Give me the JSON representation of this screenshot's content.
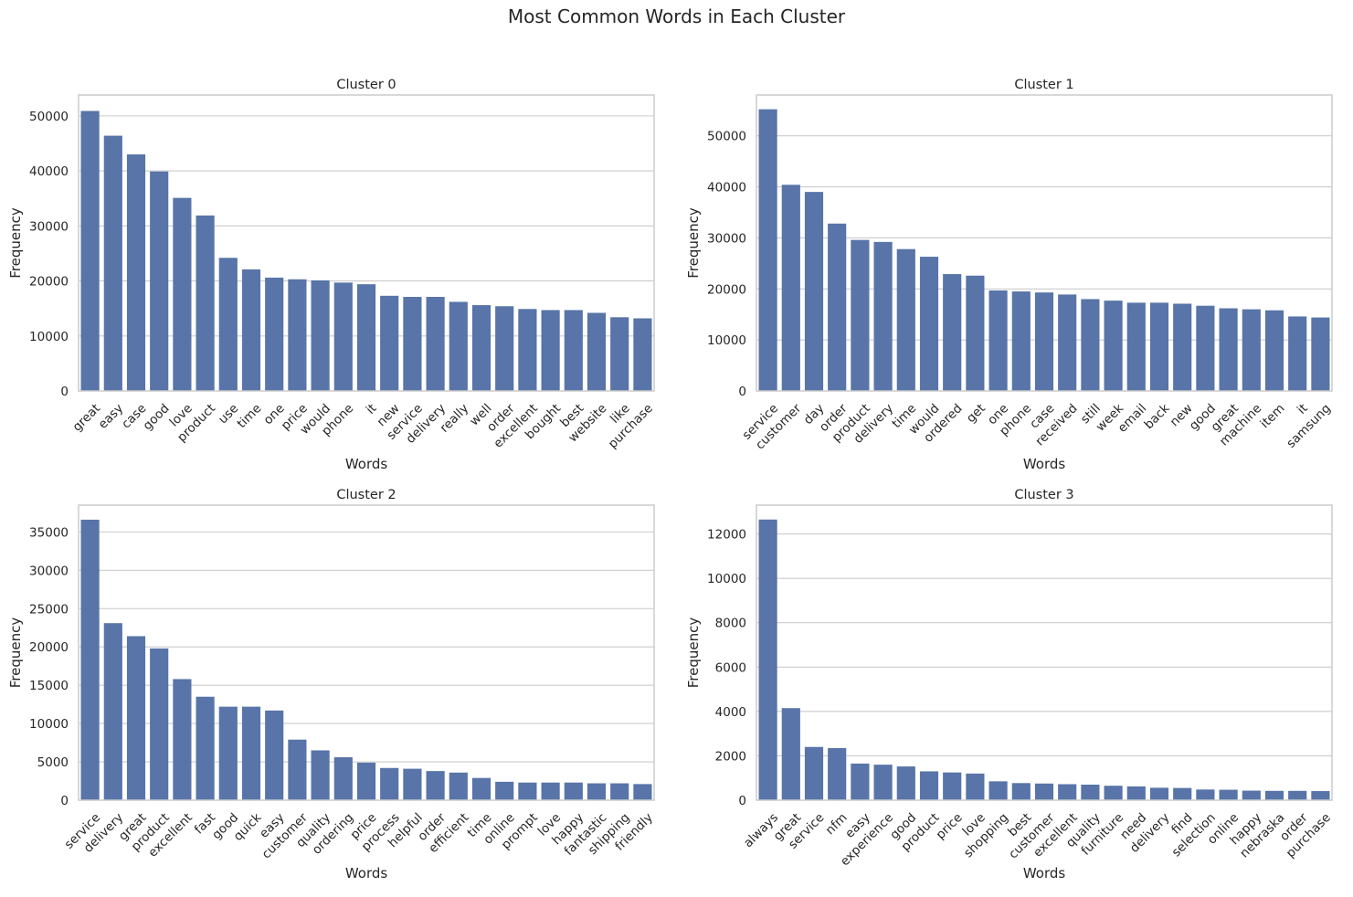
{
  "figure_title": "Most Common Words in Each Cluster",
  "colors": {
    "bar": "#5874a8",
    "grid": "#cccccc",
    "spine": "#cccccc",
    "background": "#ffffff"
  },
  "chart_data": [
    {
      "type": "bar",
      "title": "Cluster 0",
      "xlabel": "Words",
      "ylabel": "Frequency",
      "ylim": [
        0,
        53800
      ],
      "yticks": [
        0,
        10000,
        20000,
        30000,
        40000,
        50000
      ],
      "grid": "horizontal",
      "categories": [
        "great",
        "easy",
        "case",
        "good",
        "love",
        "product",
        "use",
        "time",
        "one",
        "price",
        "would",
        "phone",
        "it",
        "new",
        "service",
        "delivery",
        "really",
        "well",
        "order",
        "excellent",
        "bought",
        "best",
        "website",
        "like",
        "purchase"
      ],
      "values": [
        50900,
        46400,
        43000,
        39900,
        35100,
        31900,
        24200,
        22100,
        20600,
        20300,
        20100,
        19700,
        19400,
        17300,
        17100,
        17100,
        16200,
        15600,
        15400,
        14900,
        14700,
        14700,
        14200,
        13400,
        13200
      ]
    },
    {
      "type": "bar",
      "title": "Cluster 1",
      "xlabel": "Words",
      "ylabel": "Frequency",
      "ylim": [
        0,
        58000
      ],
      "yticks": [
        0,
        10000,
        20000,
        30000,
        40000,
        50000
      ],
      "grid": "horizontal",
      "categories": [
        "service",
        "customer",
        "day",
        "order",
        "product",
        "delivery",
        "time",
        "would",
        "ordered",
        "get",
        "one",
        "phone",
        "case",
        "received",
        "still",
        "week",
        "email",
        "back",
        "new",
        "good",
        "great",
        "machine",
        "item",
        "it",
        "samsung"
      ],
      "values": [
        55200,
        40400,
        39000,
        32800,
        29600,
        29200,
        27800,
        26300,
        22900,
        22600,
        19700,
        19500,
        19300,
        18900,
        18000,
        17700,
        17300,
        17300,
        17100,
        16700,
        16200,
        16000,
        15800,
        14600,
        14400
      ]
    },
    {
      "type": "bar",
      "title": "Cluster 2",
      "xlabel": "Words",
      "ylabel": "Frequency",
      "ylim": [
        0,
        38500
      ],
      "yticks": [
        0,
        5000,
        10000,
        15000,
        20000,
        25000,
        30000,
        35000
      ],
      "grid": "horizontal",
      "categories": [
        "service",
        "delivery",
        "great",
        "product",
        "excellent",
        "fast",
        "good",
        "quick",
        "easy",
        "customer",
        "quality",
        "ordering",
        "price",
        "process",
        "helpful",
        "order",
        "efficient",
        "time",
        "online",
        "prompt",
        "love",
        "happy",
        "fantastic",
        "shipping",
        "friendly"
      ],
      "values": [
        36600,
        23100,
        21400,
        19800,
        15800,
        13500,
        12200,
        12200,
        11700,
        7900,
        6500,
        5600,
        4900,
        4200,
        4100,
        3800,
        3600,
        2900,
        2400,
        2300,
        2300,
        2300,
        2200,
        2200,
        2100
      ]
    },
    {
      "type": "bar",
      "title": "Cluster 3",
      "xlabel": "Words",
      "ylabel": "Frequency",
      "ylim": [
        0,
        13300
      ],
      "yticks": [
        0,
        2000,
        4000,
        6000,
        8000,
        10000,
        12000
      ],
      "grid": "horizontal",
      "categories": [
        "always",
        "great",
        "service",
        "nfm",
        "easy",
        "experience",
        "good",
        "product",
        "price",
        "love",
        "shopping",
        "best",
        "customer",
        "excellent",
        "quality",
        "furniture",
        "need",
        "delivery",
        "find",
        "selection",
        "online",
        "happy",
        "nebraska",
        "order",
        "purchase"
      ],
      "values": [
        12650,
        4150,
        2400,
        2350,
        1650,
        1600,
        1520,
        1300,
        1250,
        1200,
        850,
        770,
        750,
        720,
        700,
        650,
        620,
        560,
        550,
        480,
        470,
        430,
        420,
        420,
        410
      ]
    }
  ]
}
